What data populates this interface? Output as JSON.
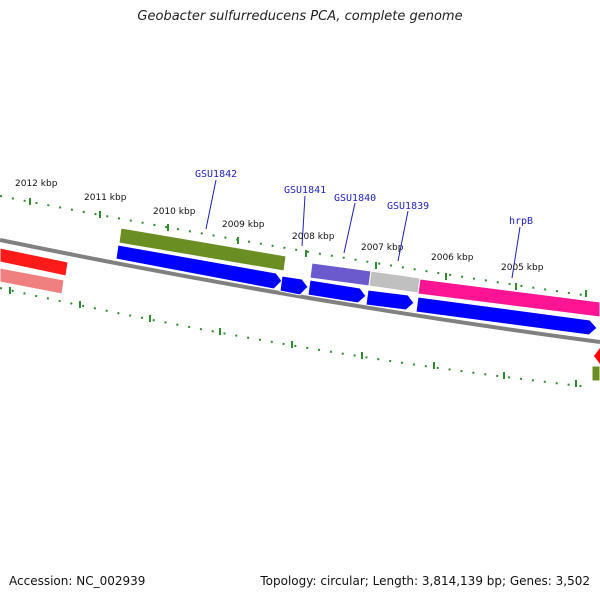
{
  "header": {
    "title": "Geobacter sulfurreducens PCA, complete genome"
  },
  "footer": {
    "accession": "Accession: NC_002939",
    "summary": "Topology: circular; Length: 3,814,139 bp; Genes: 3,502"
  },
  "colors": {
    "backbone": "#808080",
    "tick": "#2e8b2e",
    "cds_blue": "#0000ff",
    "cds_olive": "#6b8e23",
    "cds_purple": "#6a5acd",
    "cds_grey": "#c0c0c0",
    "cds_magenta": "#ff1493",
    "cds_red": "#ff0000",
    "label_blue": "#1f1fb4"
  },
  "map": {
    "kbp_labels": [
      "2012 kbp",
      "2011 kbp",
      "2010 kbp",
      "2009 kbp",
      "2008 kbp",
      "2007 kbp",
      "2006 kbp",
      "2005 kbp"
    ],
    "gene_labels": [
      "GSU1842",
      "GSU1841",
      "GSU1840",
      "GSU1839",
      "hrpB"
    ]
  }
}
